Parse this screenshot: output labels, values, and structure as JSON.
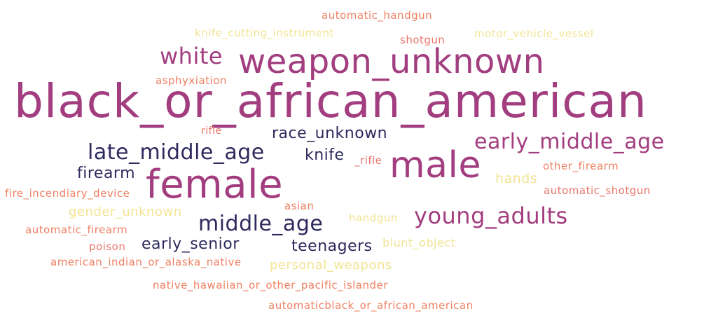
{
  "word_cloud": {
    "palette": {
      "magenta": "#a23d7f",
      "navy": "#2e2a5e",
      "coral": "#ef8163",
      "salmon": "#e8756a",
      "yellow": "#f2e493"
    },
    "words": [
      {
        "text": "automatic_handgun",
        "color": "#ef8163"
      },
      {
        "text": "knife_cutting_instrument",
        "color": "#f2e493"
      },
      {
        "text": "shotgun",
        "color": "#e8756a"
      },
      {
        "text": "motor_vehicle_vessel",
        "color": "#f2e493"
      },
      {
        "text": "white",
        "color": "#a23d7f"
      },
      {
        "text": "weapon_unknown",
        "color": "#a23d7f"
      },
      {
        "text": "asphyxiation",
        "color": "#ef8163"
      },
      {
        "text": "black_or_african_american",
        "color": "#a23d7f"
      },
      {
        "text": "rifle",
        "color": "#e8756a"
      },
      {
        "text": "race_unknown",
        "color": "#2e2a5e"
      },
      {
        "text": "early_middle_age",
        "color": "#a23d7f"
      },
      {
        "text": "late_middle_age",
        "color": "#2e2a5e"
      },
      {
        "text": "knife",
        "color": "#2e2a5e"
      },
      {
        "text": "_rifle",
        "color": "#e8756a"
      },
      {
        "text": "male",
        "color": "#a23d7f"
      },
      {
        "text": "other_firearm",
        "color": "#ef8163"
      },
      {
        "text": "firearm",
        "color": "#2e2a5e"
      },
      {
        "text": "female",
        "color": "#a23d7f"
      },
      {
        "text": "hands",
        "color": "#f2e493"
      },
      {
        "text": "fire_incendiary_device",
        "color": "#ef8163"
      },
      {
        "text": "automatic_shotgun",
        "color": "#e8756a"
      },
      {
        "text": "asian",
        "color": "#ef8163"
      },
      {
        "text": "gender_unknown",
        "color": "#f2e493"
      },
      {
        "text": "young_adults",
        "color": "#a23d7f"
      },
      {
        "text": "handgun",
        "color": "#f2e493"
      },
      {
        "text": "middle_age",
        "color": "#2e2a5e"
      },
      {
        "text": "automatic_firearm",
        "color": "#ef8163"
      },
      {
        "text": "early_senior",
        "color": "#2e2a5e"
      },
      {
        "text": "teenagers",
        "color": "#2e2a5e"
      },
      {
        "text": "blunt_object",
        "color": "#f2e493"
      },
      {
        "text": "poison",
        "color": "#e8756a"
      },
      {
        "text": "american_indian_or_alaska_native",
        "color": "#ef8163"
      },
      {
        "text": "personal_weapons",
        "color": "#f2e493"
      },
      {
        "text": "native_hawaiian_or_other_pacific_islander",
        "color": "#ef8163"
      },
      {
        "text": "automaticblack_or_african_american",
        "color": "#ef8163"
      }
    ]
  }
}
